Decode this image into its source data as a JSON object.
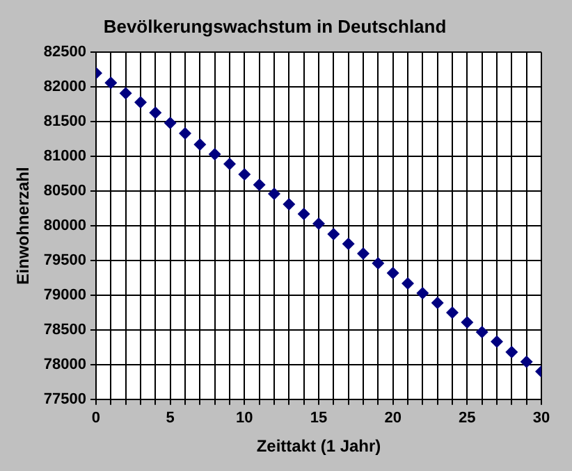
{
  "chart_data": {
    "type": "scatter",
    "title": "Bevölkerungswachstum in Deutschland",
    "xlabel": "Zeittakt (1 Jahr)",
    "ylabel": "Einwohnerzahl",
    "x": [
      0,
      1,
      2,
      3,
      4,
      5,
      6,
      7,
      8,
      9,
      10,
      11,
      12,
      13,
      14,
      15,
      16,
      17,
      18,
      19,
      20,
      21,
      22,
      23,
      24,
      25,
      26,
      27,
      28,
      29,
      30
    ],
    "series": [
      {
        "color": "#000080",
        "values": [
          82200,
          82060,
          81910,
          81780,
          81630,
          81480,
          81330,
          81170,
          81030,
          80890,
          80740,
          80590,
          80460,
          80310,
          80170,
          80030,
          79880,
          79740,
          79600,
          79460,
          79320,
          79170,
          79030,
          78890,
          78750,
          78610,
          78470,
          78330,
          78180,
          78040,
          77900
        ]
      }
    ],
    "xlim": [
      0,
      30
    ],
    "xticks": [
      0,
      {
        "value": 1,
        "label": null
      },
      {
        "value": 2,
        "label": null
      },
      {
        "value": 3,
        "label": null
      },
      {
        "value": 4,
        "label": null
      },
      5,
      {
        "value": 6,
        "label": null
      },
      {
        "value": 7,
        "label": null
      },
      {
        "value": 8,
        "label": null
      },
      {
        "value": 9,
        "label": null
      },
      10,
      {
        "value": 11,
        "label": null
      },
      {
        "value": 12,
        "label": null
      },
      {
        "value": 13,
        "label": null
      },
      {
        "value": 14,
        "label": null
      },
      15,
      {
        "value": 16,
        "label": null
      },
      {
        "value": 17,
        "label": null
      },
      {
        "value": 18,
        "label": null
      },
      {
        "value": 19,
        "label": null
      },
      20,
      {
        "value": 21,
        "label": null
      },
      {
        "value": 22,
        "label": null
      },
      {
        "value": 23,
        "label": null
      },
      {
        "value": 24,
        "label": null
      },
      25,
      {
        "value": 26,
        "label": null
      },
      {
        "value": 27,
        "label": null
      },
      {
        "value": 28,
        "label": null
      },
      {
        "value": 29,
        "label": null
      },
      30
    ],
    "ylim": [
      77500,
      82500
    ],
    "yticks": [
      77500,
      78000,
      78500,
      79000,
      79500,
      80000,
      80500,
      81000,
      81500,
      82000,
      82500
    ],
    "grid": true,
    "legend": false,
    "marker": "diamond"
  }
}
